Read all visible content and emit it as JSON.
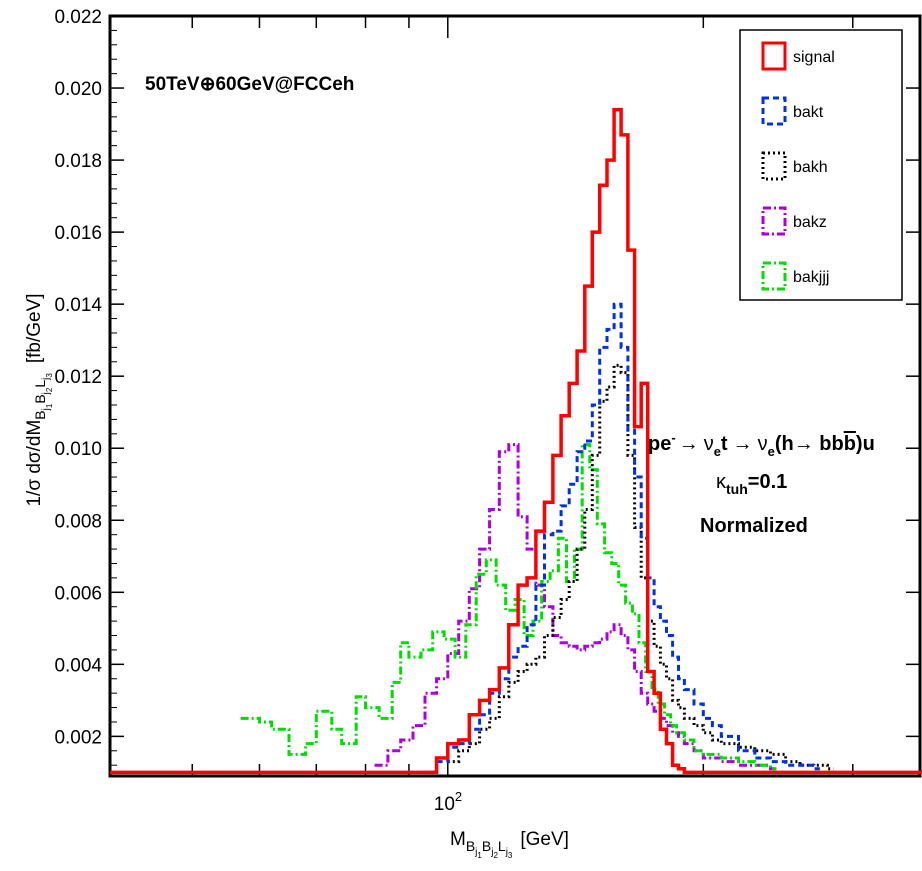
{
  "chart_data": {
    "type": "line",
    "style": "step-histogram",
    "x_scale": "log",
    "xlim": [
      40,
      360
    ],
    "ylim": [
      0.0009,
      0.022
    ],
    "grid": false,
    "legend_position": "top-right",
    "y_ticks": [
      0.002,
      0.004,
      0.006,
      0.008,
      0.01,
      0.012,
      0.014,
      0.016,
      0.018,
      0.02,
      0.022
    ],
    "y_tick_labels": [
      "0.002",
      "0.004",
      "0.006",
      "0.008",
      "0.010",
      "0.012",
      "0.014",
      "0.016",
      "0.018",
      "0.020",
      "0.022"
    ],
    "x_tick_label": {
      "base": "10",
      "exp": "2",
      "value": 100
    },
    "ylabel": {
      "prefix": "1/σ dσ/dM",
      "sub": "B",
      "sub_sub1": "j",
      "sub_sub1_idx": "1",
      "sub2": "B",
      "sub2_sub": "j",
      "sub2_idx": "2",
      "sub3": "L",
      "sub3_sub": "j",
      "sub3_idx": "3",
      "unit": "[fb/GeV]"
    },
    "xlabel": {
      "main": "M",
      "sub": "B",
      "sub_s1": "j",
      "sub_i1": "1",
      "sub_b2": "B",
      "sub_s2": "j",
      "sub_i2": "2",
      "sub_l": "L",
      "sub_s3": "j",
      "sub_i3": "3",
      "unit": "[GeV]"
    },
    "annotations": {
      "energy": "50TeV⊕60GeV@FCCeh",
      "process": {
        "p1": "pe",
        "p1sup": "-",
        "arrow": "→",
        "nu": "ν",
        "nusub": "e",
        "t": "t",
        "nu2": "ν",
        "nu2sub": "e",
        "h": "(h→ bb",
        "bbar": "",
        "tail": ")u"
      },
      "kappa": {
        "k": "κ",
        "sub": "tuh",
        "val": "=0.1"
      },
      "norm": "Normalized"
    },
    "series": [
      {
        "name": "signal",
        "color": "#ff0000",
        "dash": "solid",
        "x": [
          40,
          97,
          100,
          103,
          106,
          109,
          112,
          115,
          118,
          121,
          124,
          127,
          130,
          133,
          136,
          139,
          142,
          145,
          148,
          151,
          154,
          157,
          160,
          163,
          166,
          169,
          172,
          175,
          178,
          181,
          184,
          187,
          190,
          360
        ],
        "y": [
          0.001,
          0.0014,
          0.0018,
          0.0019,
          0.0026,
          0.003,
          0.0033,
          0.0039,
          0.0051,
          0.0062,
          0.0064,
          0.0077,
          0.0085,
          0.0098,
          0.0109,
          0.0118,
          0.0127,
          0.0145,
          0.016,
          0.0173,
          0.018,
          0.0194,
          0.0187,
          0.0155,
          0.0106,
          0.0118,
          0.0038,
          0.0032,
          0.0022,
          0.0018,
          0.0012,
          0.0011,
          0.001,
          0.001
        ]
      },
      {
        "name": "bakt",
        "color": "#0033dd",
        "dash": "6,4",
        "x": [
          97,
          100,
          103,
          106,
          109,
          112,
          115,
          118,
          121,
          124,
          127,
          130,
          133,
          136,
          139,
          142,
          145,
          148,
          151,
          154,
          157,
          160,
          163,
          166,
          169,
          172,
          175,
          178,
          181,
          184,
          187,
          190,
          195,
          200,
          205,
          210,
          220,
          230,
          240,
          250,
          270
        ],
        "y": [
          0.0013,
          0.0017,
          0.0018,
          0.0022,
          0.0026,
          0.0032,
          0.0036,
          0.0042,
          0.0045,
          0.0051,
          0.0062,
          0.0076,
          0.0077,
          0.0084,
          0.009,
          0.0099,
          0.0102,
          0.0112,
          0.0128,
          0.0133,
          0.014,
          0.0128,
          0.0105,
          0.0092,
          0.0075,
          0.0064,
          0.0056,
          0.0052,
          0.0048,
          0.0042,
          0.0036,
          0.0033,
          0.0029,
          0.0025,
          0.0023,
          0.002,
          0.0016,
          0.0014,
          0.0013,
          0.0012,
          0.0011
        ]
      },
      {
        "name": "bakh",
        "color": "#000000",
        "dash": "2,3",
        "x": [
          100,
          103,
          106,
          109,
          112,
          115,
          118,
          121,
          124,
          127,
          130,
          133,
          136,
          139,
          142,
          145,
          148,
          151,
          154,
          157,
          160,
          163,
          166,
          169,
          172,
          175,
          178,
          181,
          184,
          187,
          190,
          195,
          200,
          205,
          210,
          220,
          230,
          240,
          250,
          260,
          270,
          280
        ],
        "y": [
          0.0013,
          0.0016,
          0.0018,
          0.0022,
          0.0025,
          0.0031,
          0.0035,
          0.0038,
          0.004,
          0.0042,
          0.0048,
          0.0053,
          0.0058,
          0.0063,
          0.0072,
          0.0083,
          0.0098,
          0.0113,
          0.0117,
          0.0123,
          0.0121,
          0.0098,
          0.0078,
          0.0064,
          0.0052,
          0.0045,
          0.004,
          0.0036,
          0.003,
          0.0028,
          0.0025,
          0.0023,
          0.0021,
          0.0019,
          0.0018,
          0.0017,
          0.0016,
          0.0015,
          0.0013,
          0.0012,
          0.0012,
          0.0011
        ]
      },
      {
        "name": "bakz",
        "color": "#aa00dd",
        "dash": "8,3,2,3",
        "x": [
          82,
          85,
          88,
          91,
          94,
          97,
          100,
          103,
          106,
          109,
          112,
          115,
          118,
          121,
          124,
          127,
          130,
          133,
          136,
          139,
          142,
          145,
          148,
          151,
          154,
          157,
          160,
          163,
          166,
          169,
          172,
          175,
          178,
          181,
          184,
          187,
          190,
          195,
          200,
          210,
          220,
          230,
          240
        ],
        "y": [
          0.0012,
          0.0016,
          0.0019,
          0.0023,
          0.0032,
          0.0036,
          0.0043,
          0.0052,
          0.0061,
          0.0072,
          0.0083,
          0.0099,
          0.0101,
          0.0081,
          0.0072,
          0.0062,
          0.0056,
          0.0048,
          0.0046,
          0.0045,
          0.0044,
          0.0045,
          0.0046,
          0.0047,
          0.0049,
          0.0051,
          0.0048,
          0.0044,
          0.0038,
          0.0032,
          0.0029,
          0.0027,
          0.0025,
          0.0023,
          0.0021,
          0.002,
          0.0018,
          0.0016,
          0.0014,
          0.0013,
          0.0012,
          0.0012,
          0.0011
        ]
      },
      {
        "name": "bakjjj",
        "color": "#00dd00",
        "dash": "8,3,2,3",
        "x": [
          57,
          60,
          62,
          65,
          68,
          70,
          73,
          75,
          78,
          80,
          83,
          86,
          88,
          90,
          93,
          96,
          99,
          102,
          105,
          108,
          111,
          114,
          117,
          120,
          123,
          126,
          129,
          132,
          135,
          138,
          141,
          144,
          147,
          150,
          153,
          156,
          159,
          162,
          165,
          168,
          171,
          174,
          177,
          180,
          183,
          186,
          190,
          195,
          200,
          210,
          220,
          230,
          240
        ],
        "y": [
          0.0025,
          0.0024,
          0.0022,
          0.0015,
          0.0018,
          0.0027,
          0.0022,
          0.0018,
          0.0031,
          0.0028,
          0.0025,
          0.0035,
          0.0046,
          0.0042,
          0.0044,
          0.0049,
          0.0047,
          0.0042,
          0.0051,
          0.0065,
          0.0069,
          0.0062,
          0.0055,
          0.0058,
          0.0048,
          0.0052,
          0.0063,
          0.0066,
          0.0075,
          0.0063,
          0.0072,
          0.0101,
          0.0094,
          0.0079,
          0.0071,
          0.0068,
          0.0062,
          0.0057,
          0.0054,
          0.0046,
          0.0038,
          0.0033,
          0.0029,
          0.0026,
          0.0023,
          0.0021,
          0.0019,
          0.0016,
          0.0015,
          0.0014,
          0.0013,
          0.0012,
          0.0011
        ]
      }
    ]
  }
}
